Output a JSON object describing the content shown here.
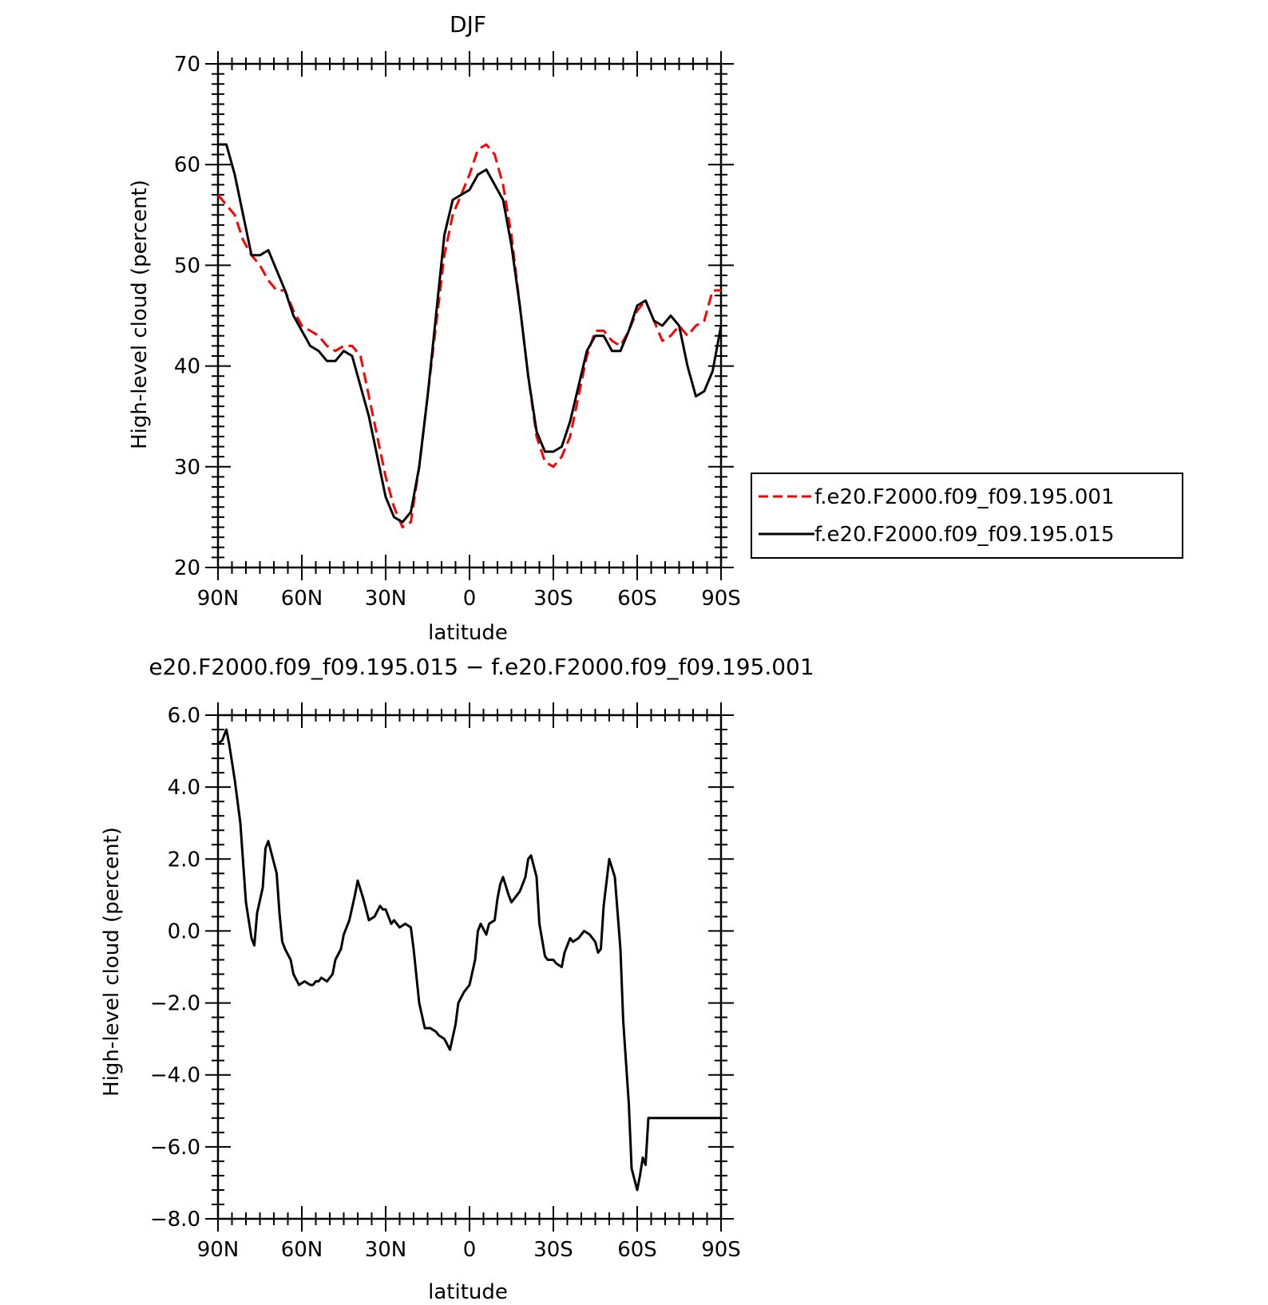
{
  "chart_data": [
    {
      "type": "line",
      "title": "DJF",
      "xlabel": "latitude",
      "ylabel": "High-level cloud (percent)",
      "xlim": [
        90,
        -90
      ],
      "ylim": [
        20,
        70
      ],
      "xticks": [
        90,
        60,
        30,
        0,
        -30,
        -60,
        -90
      ],
      "xtick_labels": [
        "90N",
        "60N",
        "30N",
        "0",
        "30S",
        "60S",
        "90S"
      ],
      "yticks": [
        20,
        30,
        40,
        50,
        60,
        70
      ],
      "ytick_labels": [
        "20",
        "30",
        "40",
        "50",
        "60",
        "70"
      ],
      "legend_position": "right",
      "series": [
        {
          "name": "f.e20.F2000.f09_f09.195.001",
          "color": "#ff0000",
          "style": "dashed",
          "x": [
            90,
            87,
            84,
            81,
            78,
            75,
            72,
            69,
            66,
            63,
            60,
            57,
            54,
            51,
            48,
            45,
            42,
            39,
            36,
            33,
            30,
            27,
            24,
            21,
            18,
            15,
            12,
            9,
            6,
            3,
            0,
            -3,
            -6,
            -9,
            -12,
            -15,
            -18,
            -21,
            -24,
            -27,
            -30,
            -33,
            -36,
            -39,
            -42,
            -45,
            -48,
            -51,
            -54,
            -57,
            -60,
            -63,
            -66,
            -69,
            -72,
            -75,
            -78,
            -81,
            -84,
            -87,
            -90
          ],
          "y": [
            57,
            56,
            55,
            52.5,
            51,
            50,
            48.5,
            47.5,
            47.5,
            45.5,
            44,
            43.5,
            43,
            42,
            41.5,
            42,
            42,
            41,
            37,
            33,
            29,
            26,
            24,
            24.5,
            30,
            37,
            44,
            51,
            55,
            57,
            59,
            61.5,
            62,
            61,
            58,
            53,
            46,
            39,
            33,
            30.5,
            30,
            31,
            33,
            37,
            41,
            43.5,
            43.5,
            42.5,
            42,
            43.5,
            45.5,
            46.5,
            44.5,
            42.5,
            43,
            44,
            43,
            44,
            44.5,
            47.5,
            47.5
          ]
        },
        {
          "name": "f.e20.F2000.f09_f09.195.015",
          "color": "#000000",
          "style": "solid",
          "x": [
            90,
            87,
            84,
            81,
            78,
            75,
            72,
            69,
            66,
            63,
            60,
            57,
            54,
            51,
            48,
            45,
            42,
            39,
            36,
            33,
            30,
            27,
            24,
            21,
            18,
            15,
            12,
            9,
            6,
            3,
            0,
            -3,
            -6,
            -9,
            -12,
            -15,
            -18,
            -21,
            -24,
            -27,
            -30,
            -33,
            -36,
            -39,
            -42,
            -45,
            -48,
            -51,
            -54,
            -57,
            -60,
            -63,
            -66,
            -69,
            -72,
            -75,
            -78,
            -81,
            -84,
            -87,
            -90
          ],
          "y": [
            62,
            62,
            59,
            55,
            51,
            51,
            51.5,
            49.5,
            47.5,
            45,
            43.5,
            42,
            41.5,
            40.5,
            40.5,
            41.5,
            41,
            38,
            35,
            31,
            27,
            25,
            24.5,
            25.5,
            30,
            37,
            45,
            53,
            56.5,
            57,
            57.5,
            59,
            59.5,
            58,
            56.5,
            52,
            46,
            39,
            33.5,
            31.5,
            31.5,
            32,
            34.5,
            38,
            41.5,
            43,
            43,
            41.5,
            41.5,
            43.5,
            46,
            46.5,
            44.5,
            44,
            45,
            44,
            40,
            37,
            37.5,
            39.5,
            44
          ]
        }
      ]
    },
    {
      "type": "line",
      "title": "e20.F2000.f09_f09.195.015 − f.e20.F2000.f09_f09.195.001",
      "xlabel": "latitude",
      "ylabel": "High-level cloud (percent)",
      "xlim": [
        90,
        -90
      ],
      "ylim": [
        -8,
        6
      ],
      "xticks": [
        90,
        60,
        30,
        0,
        -30,
        -60,
        -90
      ],
      "xtick_labels": [
        "90N",
        "60N",
        "30N",
        "0",
        "30S",
        "60S",
        "90S"
      ],
      "yticks": [
        -8,
        -6,
        -4,
        -2,
        0,
        2,
        4,
        6
      ],
      "ytick_labels": [
        "−8.0",
        "−6.0",
        "−4.0",
        "−2.0",
        "0.0",
        "2.0",
        "4.0",
        "6.0"
      ],
      "series": [
        {
          "color": "#000000",
          "style": "solid",
          "x": [
            90,
            88.5,
            87,
            86,
            84,
            82,
            80,
            78,
            77,
            76,
            74,
            73,
            72,
            71,
            69,
            68,
            67,
            66,
            64,
            63,
            61,
            59,
            57,
            56,
            55,
            54,
            53,
            51,
            49,
            48,
            46,
            45,
            43,
            41,
            40,
            38,
            36,
            34,
            32,
            31,
            30,
            29,
            28,
            27,
            25,
            23,
            21,
            20,
            18,
            16,
            14,
            12,
            11,
            9,
            7,
            5,
            4,
            2,
            0,
            -2,
            -3,
            -4,
            -6,
            -7,
            -9,
            -10,
            -11,
            -12,
            -14,
            -15,
            -17,
            -18,
            -20,
            -21,
            -22,
            -24,
            -25,
            -27,
            -28,
            -30,
            -31,
            -33,
            -34,
            -36,
            -37,
            -39,
            -41,
            -43,
            -45,
            -46,
            -47,
            -48,
            -50,
            -52,
            -54,
            -55,
            -57,
            -58,
            -60,
            -61,
            -62,
            -63,
            -64,
            -65,
            -67,
            -68,
            -70,
            -71,
            -72,
            -73,
            -74,
            -75,
            -77,
            -78,
            -79,
            -81,
            -82,
            -83,
            -84,
            -85,
            -87,
            -88,
            -89,
            -90
          ],
          "y": [
            5.2,
            5.3,
            5.6,
            5.2,
            4.2,
            3.0,
            0.8,
            -0.2,
            -0.4,
            0.5,
            1.2,
            2.3,
            2.5,
            2.2,
            1.6,
            0.5,
            -0.3,
            -0.5,
            -0.8,
            -1.2,
            -1.5,
            -1.4,
            -1.5,
            -1.5,
            -1.4,
            -1.4,
            -1.3,
            -1.4,
            -1.2,
            -0.8,
            -0.5,
            -0.1,
            0.3,
            1.0,
            1.4,
            0.9,
            0.3,
            0.4,
            0.7,
            0.6,
            0.6,
            0.4,
            0.2,
            0.3,
            0.1,
            0.2,
            0.1,
            -0.5,
            -2.0,
            -2.7,
            -2.7,
            -2.8,
            -2.9,
            -3.0,
            -3.3,
            -2.6,
            -2.0,
            -1.7,
            -1.5,
            -0.8,
            0.0,
            0.2,
            -0.1,
            0.2,
            0.3,
            0.9,
            1.3,
            1.5,
            1.0,
            0.8,
            1.0,
            1.1,
            1.5,
            2.0,
            2.1,
            1.5,
            0.2,
            -0.7,
            -0.8,
            -0.8,
            -0.9,
            -1.0,
            -0.6,
            -0.2,
            -0.3,
            -0.2,
            0.0,
            -0.1,
            -0.3,
            -0.6,
            -0.5,
            0.7,
            2.0,
            1.5,
            -0.5,
            -2.5,
            -4.8,
            -6.6,
            -7.2,
            -6.8,
            -6.3,
            -6.5,
            -5.2,
            -5.2,
            -5.2,
            -5.2,
            -5.2,
            -5.2,
            -5.2,
            -5.2,
            -5.2,
            -5.2,
            -5.2,
            -5.2,
            -5.2,
            -5.2,
            -5.2,
            -5.2,
            -5.2,
            -5.2,
            -5.2,
            -5.2,
            -5.2,
            -5.2
          ]
        }
      ]
    }
  ]
}
